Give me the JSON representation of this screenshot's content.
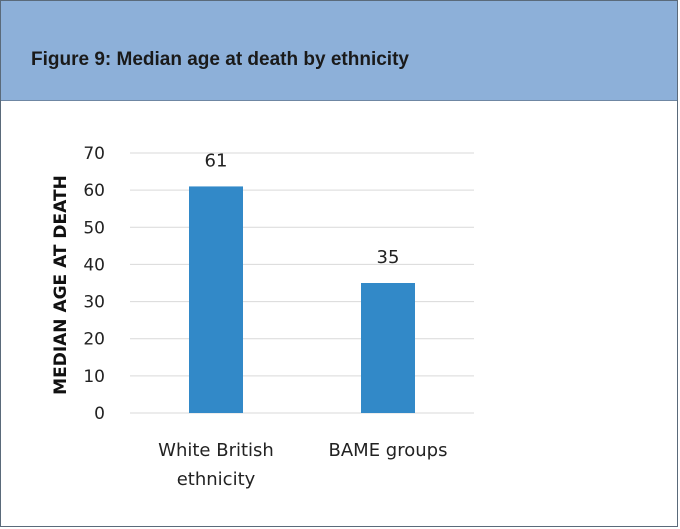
{
  "figure": {
    "title": "Figure 9: Median age at death by ethnicity"
  },
  "chart_data": {
    "type": "bar",
    "categories": [
      [
        "White British",
        "ethnicity"
      ],
      [
        "BAME groups"
      ]
    ],
    "values": [
      61,
      35
    ],
    "data_labels": [
      "61",
      "35"
    ],
    "ylabel": "MEDIAN AGE AT DEATH",
    "xlabel": "",
    "ylim": [
      0,
      70
    ],
    "yticks": [
      0,
      10,
      20,
      30,
      40,
      50,
      60,
      70
    ],
    "grid": true,
    "legend": "none",
    "bar_color": "#3289c8",
    "grid_color": "#d9d9d9"
  }
}
